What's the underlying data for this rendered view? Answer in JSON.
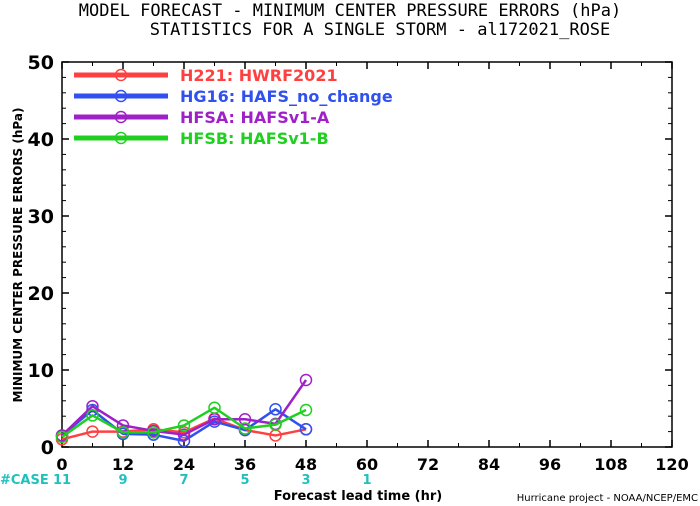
{
  "chart_data": {
    "type": "line",
    "title": "MODEL FORECAST - MINIMUM CENTER PRESSURE ERRORS (hPa)",
    "subtitle": "STATISTICS FOR A SINGLE STORM - al172021_ROSE",
    "xlabel": "Forecast lead time (hr)",
    "ylabel": "MINIMUM CENTER PRESSURE ERRORS (hPa)",
    "xlim": [
      0,
      120
    ],
    "ylim": [
      0,
      50
    ],
    "x_ticks": [
      "0",
      "12",
      "24",
      "36",
      "48",
      "60",
      "72",
      "84",
      "96",
      "108",
      "120"
    ],
    "y_ticks": [
      "0",
      "10",
      "20",
      "30",
      "40",
      "50"
    ],
    "legend_position": "top-left",
    "case_label": "#CASE",
    "cases": [
      {
        "x": 0,
        "count": "11"
      },
      {
        "x": 12,
        "count": "9"
      },
      {
        "x": 24,
        "count": "7"
      },
      {
        "x": 36,
        "count": "5"
      },
      {
        "x": 48,
        "count": "3"
      },
      {
        "x": 60,
        "count": "1"
      }
    ],
    "credit": "Hurricane project - NOAA/NCEP/EMC",
    "series": [
      {
        "name": "H221: HWRF2021",
        "color": "#ff4040",
        "x": [
          0,
          6,
          12,
          18,
          24,
          30,
          36,
          42,
          48
        ],
        "values": [
          1.0,
          2.0,
          2.0,
          2.3,
          1.9,
          3.7,
          2.2,
          1.5,
          2.3
        ]
      },
      {
        "name": "HG16: HAFS_no_change",
        "color": "#3050f0",
        "x": [
          0,
          6,
          12,
          18,
          24,
          30,
          36,
          42,
          48
        ],
        "values": [
          1.5,
          4.8,
          1.7,
          1.6,
          0.8,
          3.3,
          2.2,
          4.9,
          2.3
        ]
      },
      {
        "name": "HFSA: HAFSv1-A",
        "color": "#a020c8",
        "x": [
          0,
          6,
          12,
          18,
          24,
          30,
          36,
          42,
          48
        ],
        "values": [
          1.5,
          5.3,
          2.8,
          2.1,
          1.6,
          3.6,
          3.6,
          3.0,
          8.7
        ]
      },
      {
        "name": "HFSB: HAFSv1-B",
        "color": "#20d020",
        "x": [
          0,
          6,
          12,
          18,
          24,
          30,
          36,
          42,
          48
        ],
        "values": [
          1.3,
          4.1,
          1.9,
          1.9,
          2.8,
          5.1,
          2.4,
          2.9,
          4.8
        ]
      }
    ]
  },
  "colors": {
    "axis": "#000000",
    "case_text": "#20c0c0"
  }
}
